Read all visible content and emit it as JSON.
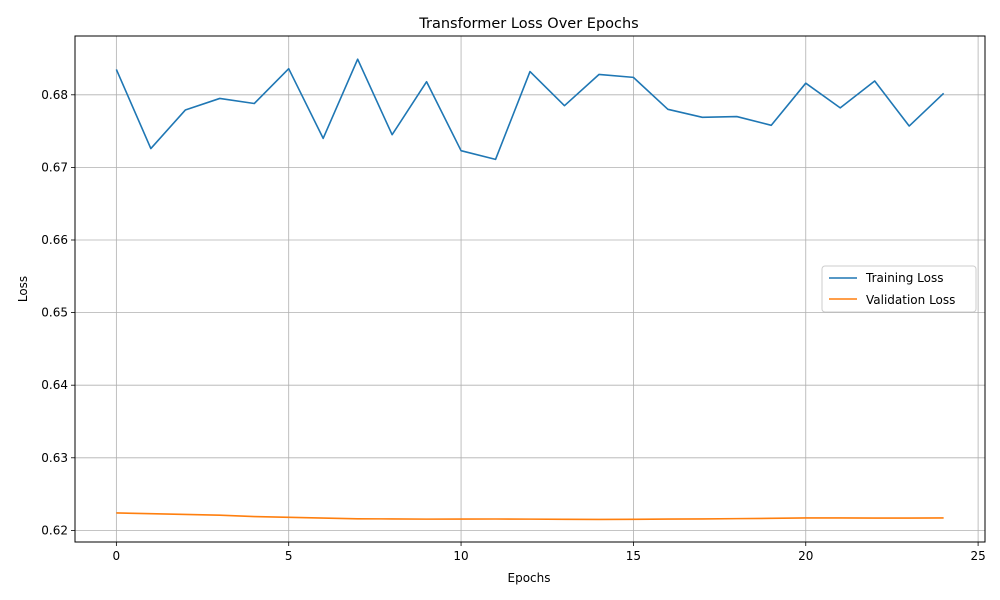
{
  "chart_data": {
    "type": "line",
    "title": "Transformer Loss Over Epochs",
    "xlabel": "Epochs",
    "ylabel": "Loss",
    "xlim": [
      -1.2,
      25.2
    ],
    "ylim": [
      0.6184,
      0.6881
    ],
    "xticks": [
      0,
      5,
      10,
      15,
      20,
      25
    ],
    "xtick_labels": [
      "0",
      "5",
      "10",
      "15",
      "20",
      "25"
    ],
    "yticks": [
      0.62,
      0.63,
      0.64,
      0.65,
      0.66,
      0.67,
      0.68
    ],
    "ytick_labels": [
      "0.62",
      "0.63",
      "0.64",
      "0.65",
      "0.66",
      "0.67",
      "0.68"
    ],
    "grid": true,
    "legend_position": "center-right",
    "x": [
      0,
      1,
      2,
      3,
      4,
      5,
      6,
      7,
      8,
      9,
      10,
      11,
      12,
      13,
      14,
      15,
      16,
      17,
      18,
      19,
      20,
      21,
      22,
      23,
      24
    ],
    "series": [
      {
        "name": "Training Loss",
        "color": "#1f77b4",
        "values": [
          0.6835,
          0.6726,
          0.6779,
          0.6795,
          0.6788,
          0.6836,
          0.674,
          0.6849,
          0.6745,
          0.6818,
          0.6723,
          0.6711,
          0.6832,
          0.6785,
          0.6828,
          0.6824,
          0.678,
          0.6769,
          0.677,
          0.6758,
          0.6816,
          0.6782,
          0.6819,
          0.6757,
          0.6802
        ]
      },
      {
        "name": "Validation Loss",
        "color": "#ff7f0e",
        "values": [
          0.6224,
          0.6223,
          0.6222,
          0.6221,
          0.6219,
          0.6218,
          0.6217,
          0.6216,
          0.62158,
          0.62155,
          0.62156,
          0.62157,
          0.62155,
          0.62153,
          0.62151,
          0.62152,
          0.62156,
          0.62158,
          0.62162,
          0.62166,
          0.62172,
          0.62171,
          0.6217,
          0.6217,
          0.62172
        ]
      }
    ]
  }
}
